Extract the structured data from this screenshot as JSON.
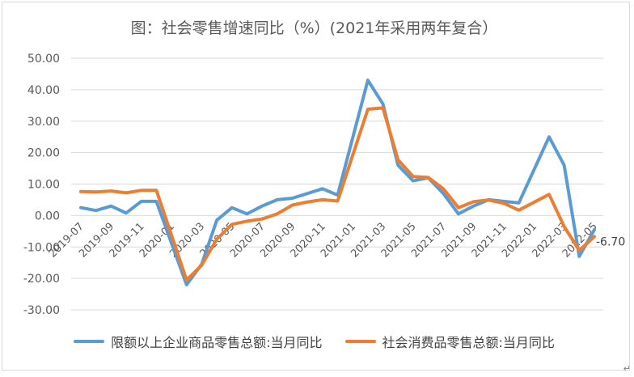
{
  "chart_data": {
    "type": "line",
    "title": "图：社会零售增速同比（%）(2021年采用两年复合）",
    "xlabel": "",
    "ylabel": "",
    "ylim": [
      -30,
      50
    ],
    "yticks": [
      "50.00",
      "40.00",
      "30.00",
      "20.00",
      "10.00",
      "0.00",
      "-10.00",
      "-20.00",
      "-30.00"
    ],
    "grid": true,
    "legend_position": "bottom",
    "x": [
      "2019-07",
      "2019-08",
      "2019-09",
      "2019-10",
      "2019-11",
      "2019-12",
      "2020-01",
      "2020-02",
      "2020-03",
      "2020-04",
      "2020-05",
      "2020-06",
      "2020-07",
      "2020-08",
      "2020-09",
      "2020-10",
      "2020-11",
      "2020-12",
      "2021-01",
      "2021-02",
      "2021-03",
      "2021-04",
      "2021-05",
      "2021-06",
      "2021-07",
      "2021-08",
      "2021-09",
      "2021-10",
      "2021-11",
      "2021-12",
      "2022-01",
      "2022-02",
      "2022-03",
      "2022-04",
      "2022-05"
    ],
    "xtick_labels": [
      "2019-07",
      "2019-09",
      "2019-11",
      "2020-01",
      "2020-03",
      "2020-05",
      "2020-07",
      "2020-09",
      "2020-11",
      "2021-01",
      "2021-03",
      "2021-05",
      "2021-07",
      "2021-09",
      "2021-11",
      "2022-01",
      "2022-03",
      "2022-05"
    ],
    "series": [
      {
        "name": "限额以上企业商品零售总额:当月同比",
        "color": "#5b9bd5",
        "values": [
          2.5,
          1.6,
          3.0,
          0.8,
          4.5,
          4.5,
          null,
          -22.0,
          -15.5,
          -1.5,
          2.5,
          0.5,
          3.0,
          5.0,
          5.5,
          7.0,
          8.5,
          6.5,
          null,
          43.0,
          35.5,
          16.0,
          11.0,
          12.0,
          7.0,
          0.5,
          3.0,
          5.0,
          4.5,
          4.0,
          null,
          25.0,
          16.0,
          -13.0,
          -4.5
        ]
      },
      {
        "name": "社会消费品零售总额:当月同比",
        "color": "#ed7d31",
        "values": [
          7.6,
          7.5,
          7.8,
          7.2,
          8.0,
          8.0,
          null,
          -20.5,
          -15.8,
          -7.5,
          -2.8,
          -1.8,
          -1.1,
          0.5,
          3.3,
          4.3,
          5.0,
          4.6,
          null,
          33.8,
          34.2,
          17.7,
          12.4,
          12.1,
          8.5,
          2.5,
          4.4,
          4.9,
          3.9,
          1.7,
          null,
          6.7,
          -3.5,
          -11.1,
          -6.7
        ]
      }
    ],
    "annotations": [
      {
        "text": "-6.70"
      }
    ]
  }
}
